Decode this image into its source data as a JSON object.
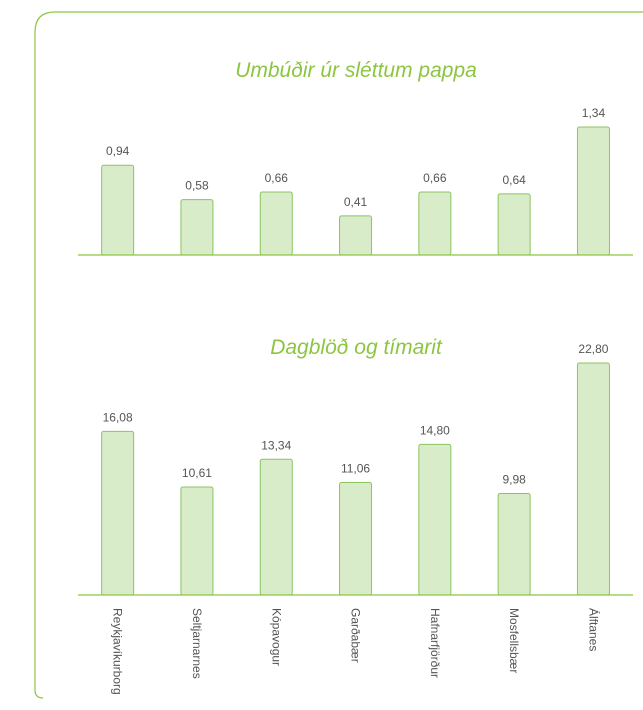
{
  "chart_data": [
    {
      "type": "bar",
      "title": "Umbúðir úr sléttum pappa",
      "values": [
        0.94,
        0.58,
        0.66,
        0.41,
        0.66,
        0.64,
        1.34
      ],
      "value_labels": [
        "0,94",
        "0,58",
        "0,66",
        "0,41",
        "0,66",
        "0,64",
        "1,34"
      ],
      "color": "#d9ecc9"
    },
    {
      "type": "bar",
      "title": "Dagblöð og tímarit",
      "categories": [
        "Reykjavíkurborg",
        "Seltjarnarnes",
        "Kópavogur",
        "Garðabær",
        "Hafnarfjörður",
        "Mosfellsbær",
        "Álftanes"
      ],
      "values": [
        16.08,
        10.61,
        13.34,
        11.06,
        14.8,
        9.98,
        22.8
      ],
      "value_labels": [
        "16,08",
        "10,61",
        "13,34",
        "11,06",
        "14,80",
        "9,98",
        "22,80"
      ],
      "color": "#d9ecc9"
    }
  ]
}
